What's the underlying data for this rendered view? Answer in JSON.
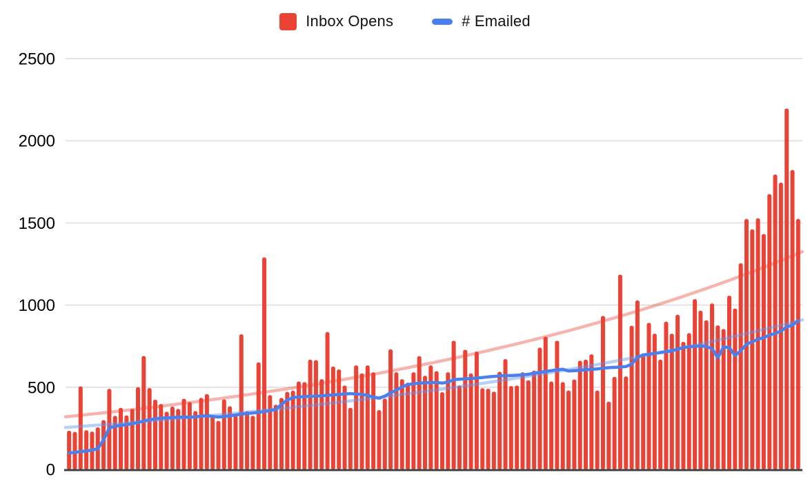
{
  "page": {
    "background": "#ffffff"
  },
  "legend": {
    "items": [
      {
        "label": "Inbox Opens",
        "color": "#EA4335",
        "swatch": "square"
      },
      {
        "label": "# Emailed",
        "color": "#4A80EC",
        "swatch": "dash"
      }
    ]
  },
  "chart_data": {
    "type": "bar",
    "subtype": "combo-bar-line-with-trendlines",
    "title": "",
    "xlabel": "",
    "ylabel": "",
    "x_axis": {
      "labels_visible": false,
      "categories_count": 128
    },
    "y_axis": {
      "ticks": [
        0,
        500,
        1000,
        1500,
        2000,
        2500
      ],
      "range": [
        0,
        2500
      ]
    },
    "grid": true,
    "legend_position": "top",
    "series": [
      {
        "name": "Inbox Opens",
        "type": "bar",
        "color": "#EA4335",
        "values": [
          235,
          228,
          505,
          238,
          230,
          256,
          300,
          490,
          326,
          375,
          328,
          368,
          500,
          690,
          495,
          424,
          398,
          351,
          382,
          368,
          430,
          410,
          355,
          435,
          458,
          326,
          295,
          426,
          384,
          326,
          822,
          354,
          326,
          651,
          1290,
          452,
          393,
          435,
          472,
          479,
          535,
          531,
          668,
          665,
          549,
          836,
          626,
          608,
          510,
          375,
          633,
          584,
          633,
          591,
          361,
          431,
          731,
          591,
          549,
          528,
          591,
          689,
          570,
          633,
          598,
          470,
          591,
          783,
          510,
          728,
          584,
          717,
          494,
          491,
          473,
          594,
          671,
          507,
          510,
          591,
          542,
          601,
          741,
          808,
          535,
          783,
          531,
          480,
          547,
          661,
          668,
          700,
          480,
          934,
          412,
          563,
          1185,
          566,
          874,
          1028,
          703,
          892,
          826,
          668,
          899,
          826,
          941,
          776,
          829,
          1036,
          966,
          907,
          1010,
          876,
          854,
          1057,
          979,
          1254,
          1524,
          1461,
          1528,
          1432,
          1675,
          1794,
          1745,
          2196,
          1822,
          1524
        ]
      },
      {
        "name": "# Emailed",
        "type": "line",
        "color": "#4A80EC",
        "values": [
          100,
          104,
          108,
          112,
          118,
          126,
          180,
          252,
          262,
          268,
          272,
          278,
          285,
          295,
          302,
          308,
          312,
          314,
          316,
          318,
          319,
          318,
          320,
          324,
          327,
          322,
          319,
          321,
          326,
          331,
          336,
          340,
          343,
          347,
          352,
          358,
          365,
          395,
          422,
          437,
          441,
          443,
          445,
          446,
          448,
          451,
          453,
          456,
          459,
          461,
          459,
          456,
          451,
          441,
          433,
          446,
          466,
          482,
          502,
          516,
          521,
          525,
          527,
          528,
          529,
          525,
          531,
          546,
          549,
          551,
          553,
          556,
          559,
          563,
          566,
          569,
          571,
          571,
          573,
          576,
          579,
          586,
          591,
          596,
          601,
          606,
          609,
          599,
          601,
          603,
          606,
          609,
          611,
          616,
          619,
          621,
          623,
          626,
          641,
          681,
          697,
          701,
          706,
          711,
          716,
          721,
          731,
          741,
          746,
          749,
          751,
          748,
          735,
          680,
          745,
          742,
          692,
          722,
          762,
          777,
          792,
          802,
          817,
          827,
          842,
          867,
          877,
          905
        ]
      },
      {
        "name": "Inbox Opens trendline",
        "type": "trend-exponential",
        "color": "rgba(234,67,53,0.4)",
        "from": 320,
        "to": 1325
      },
      {
        "name": "# Emailed trendline",
        "type": "trend-exponential",
        "color": "rgba(96,150,240,0.45)",
        "from": 255,
        "to": 910
      }
    ],
    "colors": {
      "gridline": "#e3e3e3",
      "axis_line": "#3c4043",
      "tick_label": "#000000"
    }
  }
}
